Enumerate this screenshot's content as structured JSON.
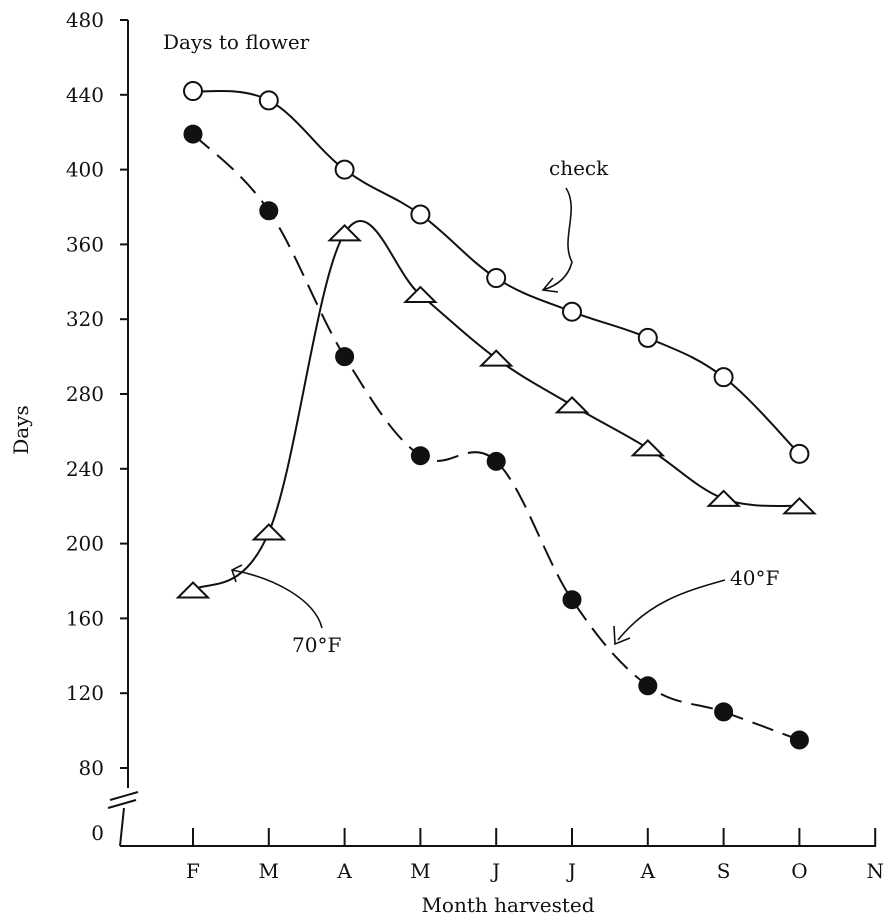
{
  "chart_data": {
    "type": "line",
    "title": "",
    "annotation_top": "Days to flower",
    "xlabel": "Month harvested",
    "ylabel": "Days",
    "categories": [
      "F",
      "M",
      "A",
      "M",
      "J",
      "J",
      "A",
      "S",
      "O",
      "N"
    ],
    "y_ticks": [
      0,
      80,
      120,
      160,
      200,
      240,
      280,
      320,
      360,
      400,
      440,
      480
    ],
    "ylim": [
      80,
      480
    ],
    "axis_break": true,
    "grid": false,
    "series": [
      {
        "name": "check",
        "marker": "open-circle",
        "line_style": "solid",
        "values": [
          442,
          437,
          400,
          376,
          342,
          324,
          310,
          289,
          248,
          null
        ]
      },
      {
        "name": "70°F",
        "marker": "open-triangle",
        "line_style": "solid",
        "values": [
          175,
          206,
          366,
          333,
          299,
          274,
          251,
          224,
          220,
          null
        ]
      },
      {
        "name": "40°F",
        "marker": "filled-circle",
        "line_style": "dashed",
        "values": [
          419,
          378,
          300,
          247,
          244,
          170,
          124,
          110,
          95,
          null
        ]
      }
    ]
  }
}
